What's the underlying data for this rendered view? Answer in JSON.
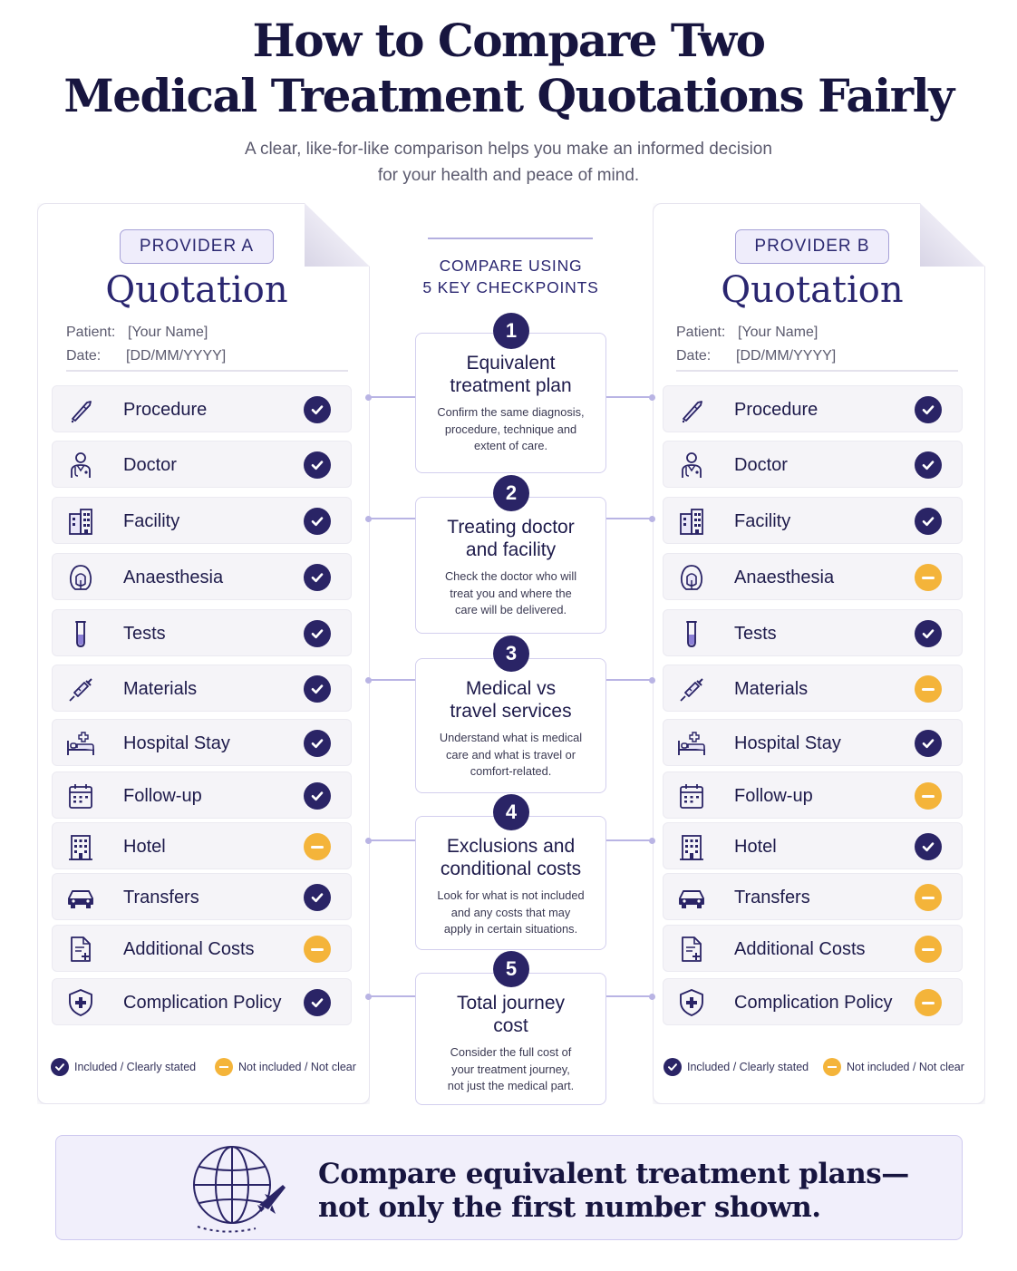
{
  "header": {
    "title_line1": "How to Compare Two",
    "title_line2": "Medical Treatment Quotations Fairly",
    "subtitle_line1": "A clear, like-for-like comparison helps you make an informed decision",
    "subtitle_line2": "for your health and peace of mind."
  },
  "providers": [
    {
      "badge": "PROVIDER A",
      "title": "Quotation",
      "patient_label": "Patient:",
      "patient_value": "[Your Name]",
      "date_label": "Date:",
      "date_value": "[DD/MM/YYYY]",
      "items": [
        {
          "label": "Procedure",
          "icon": "scalpel-icon",
          "status": "check"
        },
        {
          "label": "Doctor",
          "icon": "doctor-icon",
          "status": "check"
        },
        {
          "label": "Facility",
          "icon": "building-icon",
          "status": "check"
        },
        {
          "label": "Anaesthesia",
          "icon": "anaesthesia-mask-icon",
          "status": "check"
        },
        {
          "label": "Tests",
          "icon": "test-tube-icon",
          "status": "check"
        },
        {
          "label": "Materials",
          "icon": "syringe-icon",
          "status": "check"
        },
        {
          "label": "Hospital Stay",
          "icon": "hospital-bed-icon",
          "status": "check"
        },
        {
          "label": "Follow-up",
          "icon": "calendar-icon",
          "status": "check"
        },
        {
          "label": "Hotel",
          "icon": "hotel-icon",
          "status": "minus"
        },
        {
          "label": "Transfers",
          "icon": "car-icon",
          "status": "check"
        },
        {
          "label": "Additional Costs",
          "icon": "document-plus-icon",
          "status": "minus"
        },
        {
          "label": "Complication Policy",
          "icon": "shield-icon",
          "status": "check"
        }
      ],
      "legend_included": "Included / Clearly stated",
      "legend_not_included": "Not included / Not clear"
    },
    {
      "badge": "PROVIDER B",
      "title": "Quotation",
      "patient_label": "Patient:",
      "patient_value": "[Your Name]",
      "date_label": "Date:",
      "date_value": "[DD/MM/YYYY]",
      "items": [
        {
          "label": "Procedure",
          "icon": "scalpel-icon",
          "status": "check"
        },
        {
          "label": "Doctor",
          "icon": "doctor-icon",
          "status": "check"
        },
        {
          "label": "Facility",
          "icon": "building-icon",
          "status": "check"
        },
        {
          "label": "Anaesthesia",
          "icon": "anaesthesia-mask-icon",
          "status": "minus"
        },
        {
          "label": "Tests",
          "icon": "test-tube-icon",
          "status": "check"
        },
        {
          "label": "Materials",
          "icon": "syringe-icon",
          "status": "minus"
        },
        {
          "label": "Hospital Stay",
          "icon": "hospital-bed-icon",
          "status": "check"
        },
        {
          "label": "Follow-up",
          "icon": "calendar-icon",
          "status": "minus"
        },
        {
          "label": "Hotel",
          "icon": "hotel-icon",
          "status": "check"
        },
        {
          "label": "Transfers",
          "icon": "car-icon",
          "status": "minus"
        },
        {
          "label": "Additional Costs",
          "icon": "document-plus-icon",
          "status": "minus"
        },
        {
          "label": "Complication Policy",
          "icon": "shield-icon",
          "status": "minus"
        }
      ],
      "legend_included": "Included / Clearly stated",
      "legend_not_included": "Not included / Not clear"
    }
  ],
  "center": {
    "heading_line1": "COMPARE USING",
    "heading_line2": "5 KEY CHECKPOINTS",
    "steps": [
      {
        "num": "1",
        "title_line1": "Equivalent",
        "title_line2": "treatment plan",
        "text_line1": "Confirm the same diagnosis,",
        "text_line2": "procedure, technique and",
        "text_line3": "extent of care."
      },
      {
        "num": "2",
        "title_line1": "Treating doctor",
        "title_line2": "and facility",
        "text_line1": "Check the doctor who will",
        "text_line2": "treat you and where the",
        "text_line3": "care will be delivered."
      },
      {
        "num": "3",
        "title_line1": "Medical vs",
        "title_line2": "travel services",
        "text_line1": "Understand what is medical",
        "text_line2": "care and what is travel or",
        "text_line3": "comfort-related."
      },
      {
        "num": "4",
        "title_line1": "Exclusions and",
        "title_line2": "conditional costs",
        "text_line1": "Look for what is not included",
        "text_line2": "and any costs that may",
        "text_line3": "apply in certain situations."
      },
      {
        "num": "5",
        "title_line1": "Total journey",
        "title_line2": "cost",
        "text_line1": "Consider the full cost of",
        "text_line2": "your treatment journey,",
        "text_line3": "not just the medical part."
      }
    ]
  },
  "banner": {
    "icon": "globe-plane-icon",
    "line1": "Compare equivalent treatment plans—",
    "line2": "not only the first number shown."
  },
  "colors": {
    "navy": "#2a2466",
    "included": "#2a2466",
    "not_included": "#f4b43a",
    "accent_border": "#d3cfee",
    "banner_bg": "#f1effb"
  }
}
